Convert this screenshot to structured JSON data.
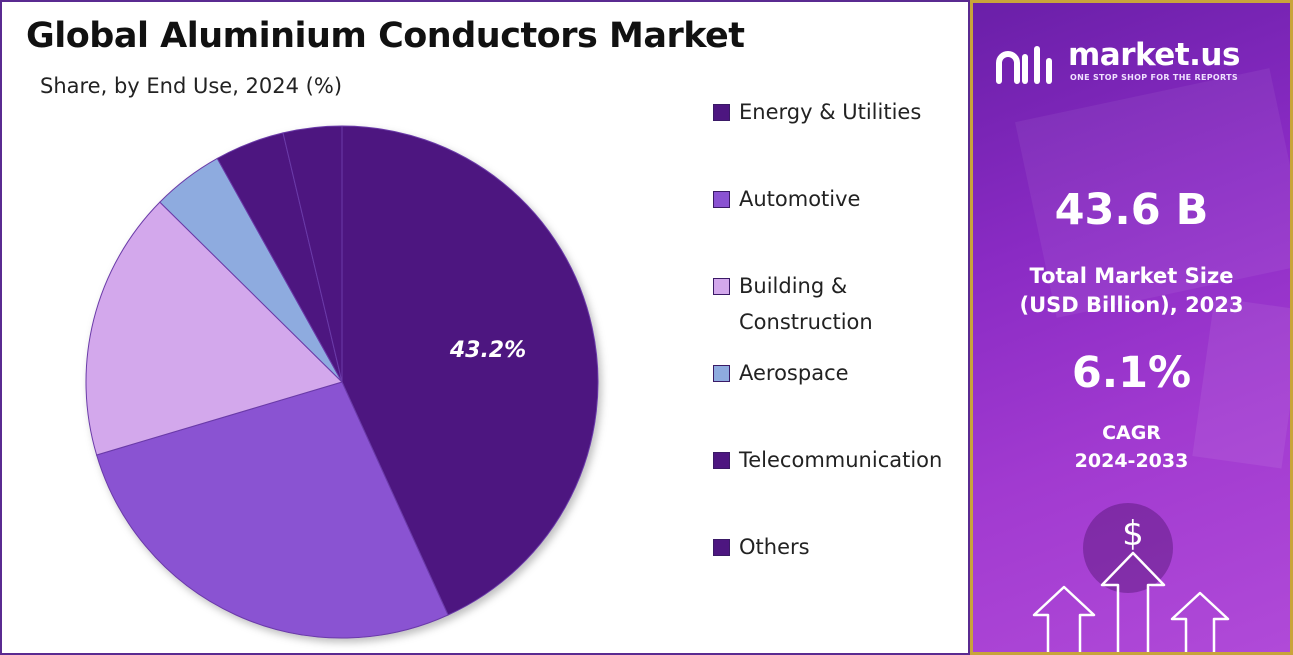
{
  "chart_data": {
    "type": "pie",
    "title": "Global Aluminium Conductors Market",
    "subtitle": "Share, by End Use, 2024 (%)",
    "categories": [
      "Energy & Utilities",
      "Automotive",
      "Building & Construction",
      "Aerospace",
      "Telecommunication",
      "Others"
    ],
    "values": [
      43.2,
      27.2,
      17.0,
      4.5,
      4.4,
      3.7
    ],
    "colors": [
      "#4d1680",
      "#8a52d2",
      "#d3a8ec",
      "#8eabdf",
      "#4d1680",
      "#4d1680"
    ],
    "data_labels": [
      {
        "category": "Energy & Utilities",
        "text": "43.2%"
      }
    ],
    "legend_position": "right"
  },
  "legend": {
    "items": [
      {
        "label": "Energy & Utilities",
        "color": "#4d1680"
      },
      {
        "label": "Automotive",
        "color": "#8a52d2"
      },
      {
        "label": "Building & Construction",
        "color": "#d3a8ec"
      },
      {
        "label": "Aerospace",
        "color": "#8eabdf"
      },
      {
        "label": "Telecommunication",
        "color": "#4d1680"
      },
      {
        "label": "Others",
        "color": "#4d1680"
      }
    ]
  },
  "sidebar": {
    "brand_name": "market.us",
    "tagline": "ONE STOP SHOP FOR THE REPORTS",
    "market_size_value": "43.6 B",
    "market_size_label_line1": "Total Market Size",
    "market_size_label_line2": "(USD Billion), 2023",
    "cagr_value": "6.1%",
    "cagr_label_line1": "CAGR",
    "cagr_label_line2": "2024-2033",
    "currency_symbol": "$",
    "logo_icon": "market-us-logo-icon",
    "arrows_icon": "growth-arrows-icon",
    "accent_color": "#8a2bc4",
    "border_color": "#c9a43a"
  }
}
